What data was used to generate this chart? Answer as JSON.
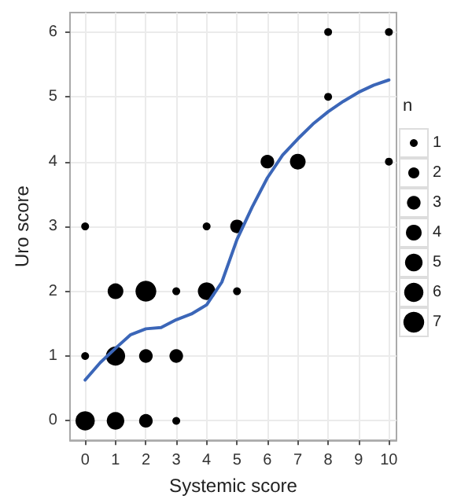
{
  "chart_data": {
    "type": "bubble",
    "xlabel": "Systemic score",
    "ylabel": "Uro score",
    "legend_title": "n",
    "grid": true,
    "series": [
      {
        "color": "#000000",
        "x": [
          0,
          4,
          5,
          6,
          7,
          8,
          10,
          8,
          10,
          1,
          2,
          3,
          4,
          5,
          0,
          1,
          2,
          3,
          0,
          1,
          2,
          3
        ],
        "values": [
          3,
          3,
          3,
          4,
          4,
          6,
          6,
          5,
          4,
          2,
          2,
          2,
          2,
          2,
          1,
          1,
          1,
          1,
          0,
          0,
          0,
          0
        ],
        "sizes": [
          1,
          1,
          3,
          3,
          4,
          1,
          1,
          1,
          1,
          4,
          7,
          1,
          5,
          1,
          1,
          6,
          3,
          3,
          6,
          5,
          3,
          1
        ]
      },
      {
        "type": "line",
        "color": "#3b66b8",
        "x": [
          0,
          0.5,
          1,
          1.5,
          2,
          2.5,
          3,
          3.5,
          4,
          4.5,
          5,
          5.5,
          6,
          6.5,
          7,
          7.5,
          8,
          8.5,
          9,
          9.5,
          10
        ],
        "values": [
          0.63,
          0.9,
          1.12,
          1.33,
          1.42,
          1.44,
          1.56,
          1.65,
          1.79,
          2.14,
          2.8,
          3.3,
          3.75,
          4.1,
          4.35,
          4.58,
          4.77,
          4.93,
          5.07,
          5.18,
          5.26
        ]
      }
    ],
    "size_legend": [
      1,
      2,
      3,
      4,
      5,
      6,
      7
    ],
    "xlim": [
      -0.5,
      10.25
    ],
    "xticks": [
      0,
      1,
      2,
      3,
      4,
      5,
      6,
      7,
      8,
      9,
      10
    ],
    "ylim": [
      -0.3,
      6.3
    ],
    "yticks": [
      0,
      1,
      2,
      3,
      4,
      5,
      6
    ]
  }
}
